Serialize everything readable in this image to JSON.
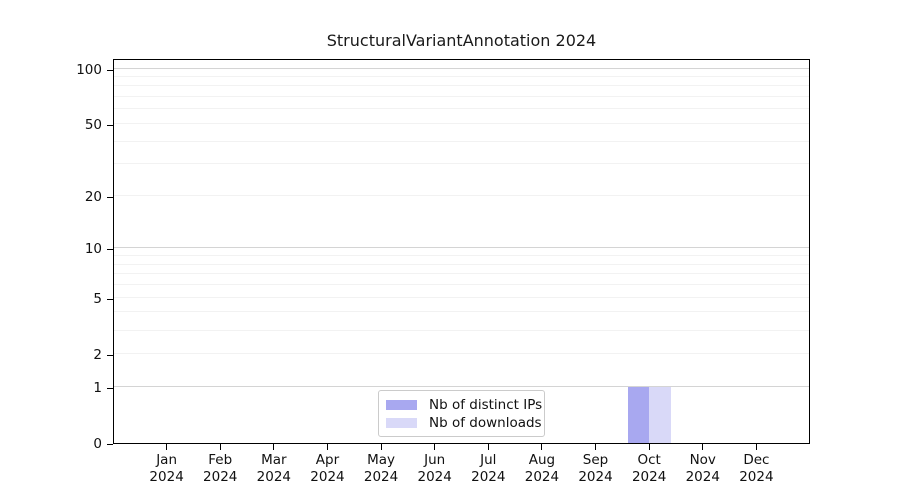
{
  "figure": {
    "title": "StructuralVariantAnnotation 2024"
  },
  "chart_data": {
    "type": "bar",
    "title": "StructuralVariantAnnotation 2024",
    "categories": [
      "Jan",
      "Feb",
      "Mar",
      "Apr",
      "May",
      "Jun",
      "Jul",
      "Aug",
      "Sep",
      "Oct",
      "Nov",
      "Dec"
    ],
    "x_axis": {
      "year": "2024",
      "tick_labels": [
        "Jan 2024",
        "Feb 2024",
        "Mar 2024",
        "Apr 2024",
        "May 2024",
        "Jun 2024",
        "Jul 2024",
        "Aug 2024",
        "Sep 2024",
        "Oct 2024",
        "Nov 2024",
        "Dec 2024"
      ]
    },
    "series": [
      {
        "name": "Nb of distinct IPs",
        "color": "#a8a8f0",
        "values": [
          0,
          0,
          0,
          0,
          0,
          0,
          0,
          0,
          0,
          1,
          0,
          0
        ]
      },
      {
        "name": "Nb of downloads",
        "color": "#d9d9f8",
        "values": [
          0,
          0,
          0,
          0,
          0,
          0,
          0,
          0,
          0,
          1,
          0,
          0
        ]
      }
    ],
    "y_axis": {
      "scale": "log1p",
      "ticks": [
        0,
        1,
        2,
        5,
        10,
        20,
        50,
        100
      ],
      "minor_gridlines": [
        2,
        3,
        4,
        5,
        6,
        7,
        8,
        9,
        20,
        30,
        40,
        50,
        60,
        70,
        80,
        90
      ],
      "major_gridlines": [
        1,
        10,
        100
      ],
      "max": 114
    },
    "ylim": [
      0,
      114
    ],
    "grid": "horizontal",
    "legend_position": "lower center",
    "colors": {
      "minor_grid": "#f2f2f2",
      "major_grid": "#d4d4d4",
      "spine": "#000000"
    }
  }
}
